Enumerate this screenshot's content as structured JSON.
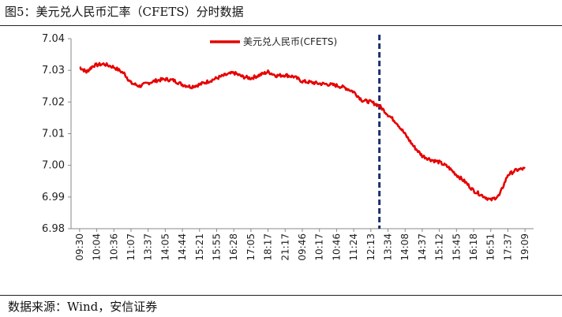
{
  "title": "图5：美元兑人民币汇率（CFETS）分时数据",
  "source": "数据来源：Wind，安信证券",
  "colors": {
    "series": "#e60000",
    "divider": "#1a2f6e",
    "axis": "#888888"
  },
  "chart_data": {
    "type": "line",
    "legend": {
      "placement": "top-center",
      "entries": [
        "美元兑人民币(CFETS)"
      ]
    },
    "ylim": [
      6.98,
      7.04
    ],
    "yticks": [
      "7.04",
      "7.03",
      "7.02",
      "7.01",
      "7.00",
      "6.99",
      "6.98"
    ],
    "xticks": [
      "09:30",
      "10:04",
      "10:36",
      "11:07",
      "13:37",
      "14:05",
      "14:44",
      "15:21",
      "15:55",
      "16:28",
      "17:05",
      "18:17",
      "21:17",
      "09:46",
      "10:17",
      "10:46",
      "11:24",
      "12:13",
      "13:34",
      "14:08",
      "14:37",
      "15:12",
      "15:45",
      "16:18",
      "16:51",
      "17:37",
      "19:09"
    ],
    "divider_after_tick": "12:13",
    "series": [
      {
        "name": "美元兑人民币(CFETS)",
        "x_index": [
          0,
          0.4,
          0.8,
          1.4,
          2,
          2.6,
          3,
          3.5,
          4,
          4.5,
          5,
          5.5,
          6,
          6.5,
          7,
          7.5,
          8,
          8.5,
          9,
          9.5,
          10,
          10.5,
          11,
          11.5,
          12,
          12.5,
          13,
          13.5,
          14,
          14.5,
          15,
          15.5,
          16,
          16.5,
          17,
          17.5,
          18,
          18.5,
          19,
          19.5,
          20,
          20.5,
          21,
          21.5,
          22,
          22.5,
          23,
          23.5,
          24,
          24.5,
          25,
          25.5,
          26
        ],
        "values": [
          7.031,
          7.0295,
          7.0315,
          7.032,
          7.031,
          7.029,
          7.026,
          7.025,
          7.026,
          7.0268,
          7.0272,
          7.0268,
          7.0255,
          7.0248,
          7.0255,
          7.0265,
          7.0275,
          7.0285,
          7.0292,
          7.028,
          7.0275,
          7.0285,
          7.0295,
          7.0283,
          7.0285,
          7.028,
          7.0265,
          7.0262,
          7.0258,
          7.0256,
          7.0252,
          7.0245,
          7.0232,
          7.0205,
          7.02,
          7.0188,
          7.016,
          7.0135,
          7.0098,
          7.006,
          7.003,
          7.0018,
          7.001,
          6.9995,
          6.997,
          6.9948,
          6.992,
          6.9905,
          6.989,
          6.9905,
          6.997,
          6.9985,
          6.999
        ]
      }
    ]
  }
}
